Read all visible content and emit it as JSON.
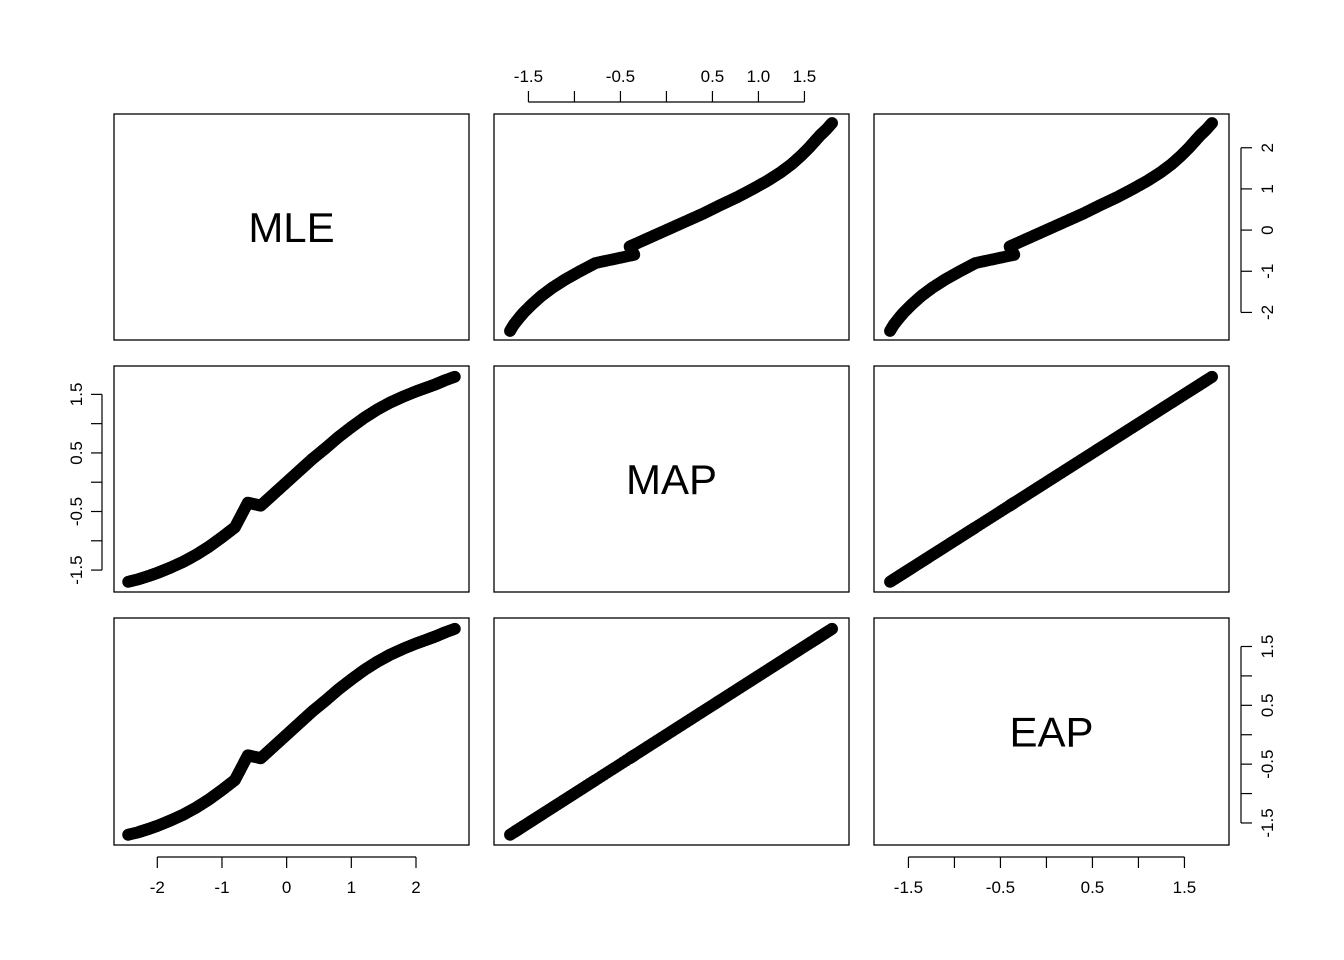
{
  "chart_data": {
    "type": "scatter",
    "kind": "scatterplot-matrix",
    "variables": [
      "MLE",
      "MAP",
      "EAP"
    ],
    "ranges": {
      "MLE": [
        -2.45,
        2.6
      ],
      "MAP": [
        -1.72,
        1.83
      ],
      "EAP": [
        -1.72,
        1.83
      ]
    },
    "axes": {
      "top_MAP": {
        "ticks": [
          -1.5,
          -1.0,
          -0.5,
          0.0,
          0.5,
          1.0,
          1.5
        ],
        "labels": [
          "-1.5",
          "",
          "-0.5",
          "",
          "0.5",
          "1.0",
          "1.5"
        ]
      },
      "right_MLE": {
        "ticks": [
          -2,
          -1,
          0,
          1,
          2
        ],
        "labels": [
          "-2",
          "-1",
          "0",
          "1",
          "2"
        ]
      },
      "left_MAP": {
        "ticks": [
          -1.5,
          -1.0,
          -0.5,
          0.0,
          0.5,
          1.0,
          1.5
        ],
        "labels": [
          "-1.5",
          "",
          "-0.5",
          "",
          "0.5",
          "",
          "1.5"
        ]
      },
      "right_EAP": {
        "ticks": [
          -1.5,
          -1.0,
          -0.5,
          0.0,
          0.5,
          1.0,
          1.5
        ],
        "labels": [
          "-1.5",
          "",
          "-0.5",
          "",
          "0.5",
          "",
          "1.5"
        ]
      },
      "bottom_MLE": {
        "ticks": [
          -2,
          -1,
          0,
          1,
          2
        ],
        "labels": [
          "-2",
          "-1",
          "0",
          "1",
          "2"
        ]
      },
      "bottom_EAP": {
        "ticks": [
          -1.5,
          -1.0,
          -0.5,
          0.0,
          0.5,
          1.0,
          1.5
        ],
        "labels": [
          "-1.5",
          "",
          "-0.5",
          "",
          "0.5",
          "",
          "1.5"
        ]
      }
    },
    "points": [
      {
        "MLE": -2.45,
        "MAP": -1.7,
        "EAP": -1.7
      },
      {
        "MLE": -2.3,
        "MAP": -1.66,
        "EAP": -1.66
      },
      {
        "MLE": -2.13,
        "MAP": -1.6,
        "EAP": -1.6
      },
      {
        "MLE": -2.0,
        "MAP": -1.55,
        "EAP": -1.55
      },
      {
        "MLE": -1.8,
        "MAP": -1.46,
        "EAP": -1.46
      },
      {
        "MLE": -1.6,
        "MAP": -1.36,
        "EAP": -1.36
      },
      {
        "MLE": -1.4,
        "MAP": -1.24,
        "EAP": -1.24
      },
      {
        "MLE": -1.2,
        "MAP": -1.1,
        "EAP": -1.1
      },
      {
        "MLE": -1.0,
        "MAP": -0.94,
        "EAP": -0.94
      },
      {
        "MLE": -0.8,
        "MAP": -0.77,
        "EAP": -0.77
      },
      {
        "MLE": -0.6,
        "MAP": -0.35,
        "EAP": -0.35
      },
      {
        "MLE": -0.4,
        "MAP": -0.4,
        "EAP": -0.4
      },
      {
        "MLE": -0.2,
        "MAP": -0.2,
        "EAP": -0.2
      },
      {
        "MLE": 0.0,
        "MAP": 0.0,
        "EAP": 0.0
      },
      {
        "MLE": 0.2,
        "MAP": 0.2,
        "EAP": 0.2
      },
      {
        "MLE": 0.4,
        "MAP": 0.4,
        "EAP": 0.4
      },
      {
        "MLE": 0.6,
        "MAP": 0.58,
        "EAP": 0.58
      },
      {
        "MLE": 0.8,
        "MAP": 0.77,
        "EAP": 0.77
      },
      {
        "MLE": 1.0,
        "MAP": 0.94,
        "EAP": 0.94
      },
      {
        "MLE": 1.2,
        "MAP": 1.1,
        "EAP": 1.1
      },
      {
        "MLE": 1.4,
        "MAP": 1.24,
        "EAP": 1.24
      },
      {
        "MLE": 1.6,
        "MAP": 1.36,
        "EAP": 1.36
      },
      {
        "MLE": 1.8,
        "MAP": 1.46,
        "EAP": 1.46
      },
      {
        "MLE": 2.0,
        "MAP": 1.55,
        "EAP": 1.55
      },
      {
        "MLE": 2.15,
        "MAP": 1.61,
        "EAP": 1.61
      },
      {
        "MLE": 2.3,
        "MAP": 1.67,
        "EAP": 1.67
      },
      {
        "MLE": 2.45,
        "MAP": 1.74,
        "EAP": 1.74
      },
      {
        "MLE": 2.6,
        "MAP": 1.8,
        "EAP": 1.8
      }
    ],
    "colors": {
      "axis": "#000000",
      "points": "#000000",
      "background": "#ffffff"
    }
  }
}
